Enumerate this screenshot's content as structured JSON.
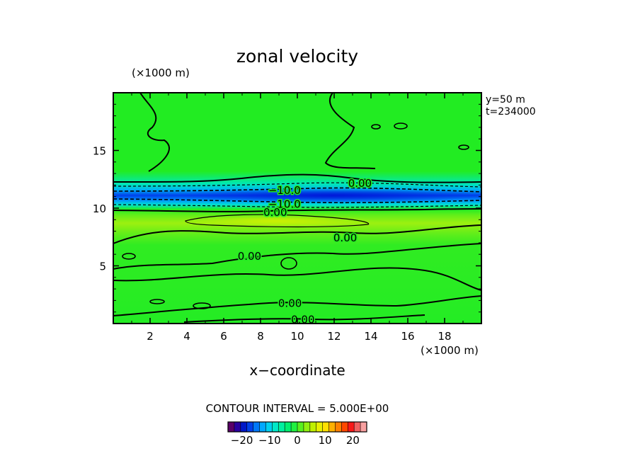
{
  "chart_data": {
    "type": "heatmap",
    "title": "zonal velocity",
    "xlabel": "x−coordinate",
    "x_unit_label": "(×1000 m)",
    "y_unit_label": "(×1000 m)",
    "info_lines": [
      "y=50  m",
      "t=234000"
    ],
    "xlim": [
      0,
      20
    ],
    "ylim": [
      0,
      20
    ],
    "x_ticks": [
      2,
      4,
      6,
      8,
      10,
      12,
      14,
      16,
      18
    ],
    "y_ticks": [
      5,
      10,
      15
    ],
    "grid": false,
    "field_summary": {
      "background_value": 0,
      "jet_min": {
        "value": -15,
        "y": 11.0
      },
      "jet_core_x": [
        8,
        14
      ],
      "positive_band": {
        "value": 5,
        "y": 9.0,
        "x": [
          4,
          14
        ]
      }
    },
    "contour_labels": [
      {
        "text": "0.00",
        "x": 13.4,
        "y": 12.2
      },
      {
        "text": "−10.0",
        "x": 9.3,
        "y": 11.6
      },
      {
        "text": "−10.0",
        "x": 9.3,
        "y": 10.4
      },
      {
        "text": "0.00",
        "x": 8.8,
        "y": 9.7
      },
      {
        "text": "0.00",
        "x": 12.6,
        "y": 7.5
      },
      {
        "text": "0.00",
        "x": 7.4,
        "y": 5.9
      },
      {
        "text": "0.00",
        "x": 9.6,
        "y": 1.8
      },
      {
        "text": "0.00",
        "x": 10.3,
        "y": 0.4
      }
    ],
    "contour_interval_text": "CONTOUR INTERVAL = 5.000E+00",
    "colorbar": {
      "range": [
        -25,
        25
      ],
      "ticks": [
        -20,
        -10,
        0,
        10,
        20
      ],
      "tick_labels": [
        "−20",
        "−10",
        "0",
        "10",
        "20"
      ],
      "colors": [
        "#5a0068",
        "#2a00a0",
        "#0018c8",
        "#0040e8",
        "#0078f8",
        "#00a8ff",
        "#00d0f0",
        "#00e8c8",
        "#00f0a0",
        "#00f070",
        "#20f040",
        "#58f020",
        "#90f010",
        "#c0f000",
        "#e8f000",
        "#ffe000",
        "#ffb000",
        "#ff8000",
        "#ff4800",
        "#f81818",
        "#f06060",
        "#f8a0a0"
      ]
    }
  }
}
